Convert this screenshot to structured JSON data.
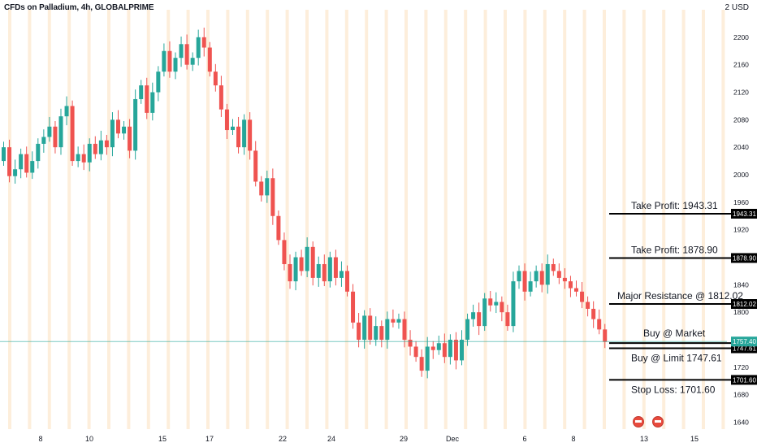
{
  "header": {
    "title": "CFDs on Palladium, 4h, GLOBALPRIME",
    "currency": "2 USD"
  },
  "colors": {
    "up": "#26a69a",
    "down": "#ef5350",
    "level_line": "#000000",
    "current_price_line": "#26a69a",
    "session_band": "#fbe0bd"
  },
  "chart_data": {
    "type": "candlestick",
    "y_axis_ticks": [
      1640,
      1680,
      1720,
      1760,
      1800,
      1840,
      1880,
      1920,
      1960,
      2000,
      2040,
      2080,
      2120,
      2160,
      2200
    ],
    "ylim": [
      1630,
      2240
    ],
    "x_ticks": [
      "8",
      "10",
      "15",
      "17",
      "22",
      "24",
      "29",
      "Dec",
      "6",
      "8",
      "13",
      "15"
    ],
    "levels": [
      {
        "label": "Take Profit:  1943.31",
        "price": 1943.31,
        "tag": "1943.31"
      },
      {
        "label": "Take Profit:  1878.90",
        "price": 1878.9,
        "tag": "1878.90"
      },
      {
        "label": "Major Resistance @ 1812.02",
        "price": 1812.02,
        "tag": "1812.02"
      },
      {
        "label": "Buy @ Market",
        "price": 1755.17,
        "tag": "1755.17"
      },
      {
        "label": "Buy @ Limit 1747.61",
        "price": 1747.61,
        "tag": "1747.61"
      },
      {
        "label": "Stop Loss:  1701.60",
        "price": 1701.6,
        "tag": "1701.60"
      }
    ],
    "current_price": {
      "price": 1757.4,
      "tag": "1757.40"
    },
    "closes": [
      2040,
      1998,
      2008,
      2030,
      2003,
      2020,
      2045,
      2055,
      2070,
      2040,
      2085,
      2100,
      2020,
      2030,
      2018,
      2045,
      2030,
      2050,
      2040,
      2080,
      2060,
      2070,
      2035,
      2110,
      2130,
      2090,
      2120,
      2150,
      2180,
      2150,
      2170,
      2190,
      2160,
      2170,
      2200,
      2185,
      2150,
      2130,
      2095,
      2065,
      2070,
      2040,
      2080,
      2035,
      1990,
      1970,
      1995,
      1940,
      1905,
      1870,
      1845,
      1880,
      1860,
      1895,
      1850,
      1870,
      1845,
      1880,
      1850,
      1860,
      1830,
      1785,
      1760,
      1795,
      1760,
      1780,
      1760,
      1790,
      1785,
      1790,
      1760,
      1750,
      1735,
      1715,
      1750,
      1745,
      1755,
      1735,
      1760,
      1730,
      1760,
      1790,
      1800,
      1780,
      1820,
      1810,
      1815,
      1800,
      1780,
      1845,
      1860,
      1830,
      1845,
      1860,
      1840,
      1870,
      1860,
      1850,
      1845,
      1835,
      1830,
      1815,
      1805,
      1790,
      1775,
      1757
    ]
  }
}
